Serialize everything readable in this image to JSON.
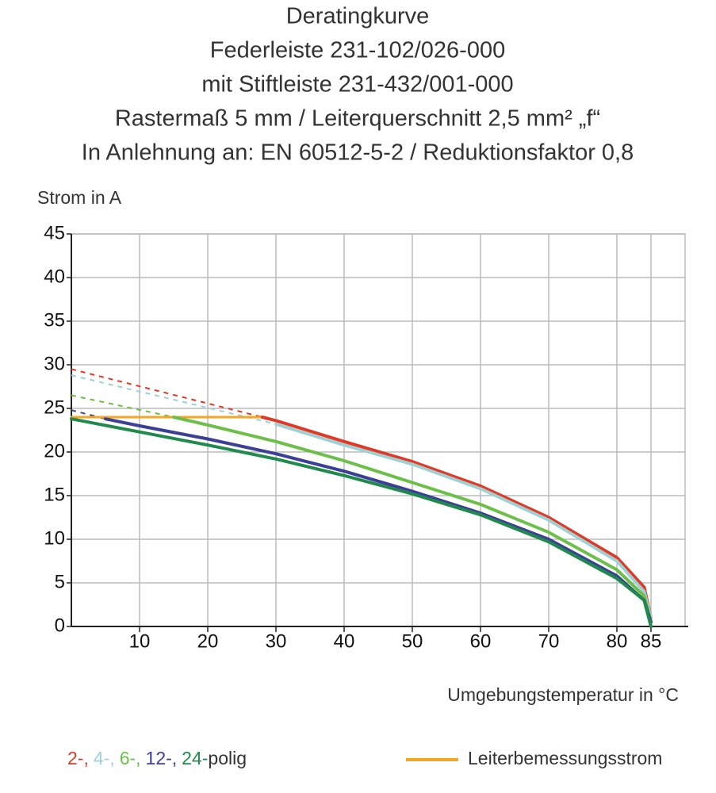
{
  "chart_data": {
    "type": "line",
    "title": [
      "Deratingkurve",
      "Federleiste 231-102/026-000",
      "mit Stiftleiste 231-432/001-000",
      "Rastermaß 5 mm / Leiterquerschnitt 2,5 mm² „f“",
      "In Anlehnung an: EN 60512-5-2 / Reduktionsfaktor 0,8"
    ],
    "y_label": "Strom in A",
    "x_label": "Umgebungstemperatur in °C",
    "xlim": [
      0,
      90
    ],
    "ylim": [
      0,
      45
    ],
    "xticks": [
      10,
      20,
      30,
      40,
      50,
      60,
      70,
      80,
      85
    ],
    "yticks": [
      0,
      5,
      10,
      15,
      20,
      25,
      30,
      35,
      40,
      45
    ],
    "grid": true,
    "series": [
      {
        "name": "2-,",
        "color": "#e03a26",
        "x": [
          28,
          30,
          40,
          50,
          60,
          70,
          80,
          84,
          85
        ],
        "values": [
          24,
          23.6,
          21.2,
          18.9,
          16.1,
          12.5,
          7.9,
          4.5,
          1
        ]
      },
      {
        "name": "4-,",
        "color": "#9fd0d4",
        "x": [
          30,
          40,
          50,
          60,
          70,
          80,
          84,
          85
        ],
        "values": [
          23.2,
          20.8,
          18.6,
          15.8,
          12.2,
          7.5,
          4,
          1
        ]
      },
      {
        "name": "6-,",
        "color": "#6cc04a",
        "x": [
          15,
          20,
          30,
          40,
          50,
          60,
          70,
          80,
          84,
          85
        ],
        "values": [
          24,
          23.1,
          21.2,
          19,
          16.5,
          14,
          10.8,
          6.5,
          3.5,
          0.5
        ]
      },
      {
        "name": "12-,",
        "color": "#3b3f96",
        "x": [
          5,
          10,
          20,
          30,
          40,
          50,
          60,
          70,
          80,
          84,
          85
        ],
        "values": [
          23.8,
          23,
          21.5,
          19.8,
          17.8,
          15.5,
          13,
          10,
          5.8,
          3,
          0.5
        ]
      },
      {
        "name": "24-",
        "color": "#1f8a4c",
        "x": [
          0,
          10,
          20,
          30,
          40,
          50,
          60,
          70,
          80,
          84,
          85
        ],
        "values": [
          23.8,
          22.3,
          20.8,
          19.2,
          17.3,
          15.2,
          12.8,
          9.7,
          5.5,
          3,
          0
        ]
      }
    ],
    "legend_suffix": "polig",
    "extensions": [
      {
        "color": "#e03a26",
        "dashed": true,
        "x": [
          0,
          28
        ],
        "values": [
          29.5,
          24
        ]
      },
      {
        "color": "#9fd0d4",
        "dashed": true,
        "x": [
          0,
          30
        ],
        "values": [
          28.8,
          23.2
        ]
      },
      {
        "color": "#6cc04a",
        "dashed": true,
        "x": [
          0,
          15
        ],
        "values": [
          26.5,
          24
        ]
      },
      {
        "color": "#3b3f96",
        "dashed": true,
        "x": [
          0,
          5
        ],
        "values": [
          24.8,
          23.8
        ]
      }
    ],
    "rated_current": {
      "name": "Leiterbemessungsstrom",
      "color": "#f5a623",
      "x": [
        0,
        28
      ],
      "values": [
        24,
        24
      ]
    }
  }
}
